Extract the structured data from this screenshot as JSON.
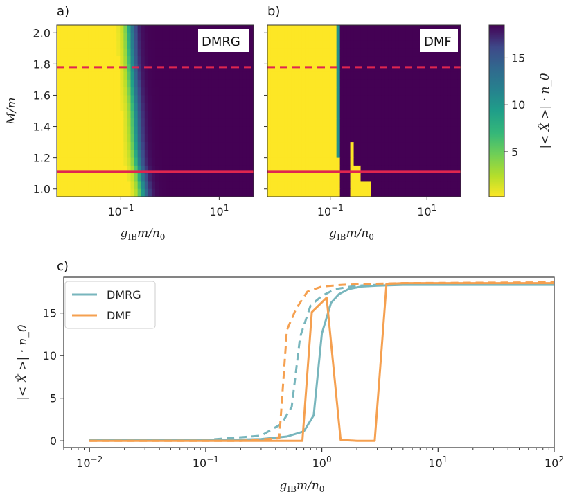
{
  "chart_data": [
    {
      "panel": "a)",
      "type": "heatmap",
      "tag": "DMRG",
      "xlabel": "g_IB m/n_0",
      "ylabel": "M/m",
      "xscale": "log",
      "xlim": [
        0.005,
        50
      ],
      "ylim": [
        0.95,
        2.05
      ],
      "xticks": [
        {
          "value": 0.1,
          "base": "10",
          "exp": "−1"
        },
        {
          "value": 10,
          "base": "10",
          "exp": "1"
        }
      ],
      "yticks": [
        "1.0",
        "1.2",
        "1.4",
        "1.6",
        "1.8",
        "2.0"
      ],
      "colormap": "viridis_r",
      "transition_boundary": [
        {
          "y": 0.95,
          "x": 0.28
        },
        {
          "y": 1.05,
          "x": 0.26
        },
        {
          "y": 1.15,
          "x": 0.22
        },
        {
          "y": 1.3,
          "x": 0.2
        },
        {
          "y": 1.5,
          "x": 0.19
        },
        {
          "y": 1.7,
          "x": 0.17
        },
        {
          "y": 1.85,
          "x": 0.16
        },
        {
          "y": 2.05,
          "x": 0.15
        }
      ],
      "reference_lines": [
        {
          "y": 1.78,
          "style": "dashed",
          "color": "#e0264f"
        },
        {
          "y": 1.11,
          "style": "solid",
          "color": "#e0264f"
        }
      ]
    },
    {
      "panel": "b)",
      "type": "heatmap",
      "tag": "DMF",
      "xlabel": "g_IB m/n_0",
      "xscale": "log",
      "xlim": [
        0.005,
        50
      ],
      "ylim": [
        0.95,
        2.05
      ],
      "xticks": [
        {
          "value": 0.1,
          "base": "10",
          "exp": "−1"
        },
        {
          "value": 10,
          "base": "10",
          "exp": "1"
        }
      ],
      "colormap": "viridis_r",
      "high_region_start_x": 0.15,
      "low_islands": [
        {
          "x0": 0.25,
          "x1": 0.32,
          "y0": 0.95,
          "y1": 1.28
        },
        {
          "x0": 0.32,
          "x1": 0.42,
          "y0": 0.95,
          "y1": 1.16
        },
        {
          "x0": 0.42,
          "x1": 0.65,
          "y0": 0.95,
          "y1": 1.05
        }
      ],
      "reference_lines": [
        {
          "y": 1.78,
          "style": "dashed",
          "color": "#e0264f"
        },
        {
          "y": 1.11,
          "style": "solid",
          "color": "#e0264f"
        }
      ]
    },
    {
      "type": "colorbar",
      "label": "|< X̂ >| · n_0",
      "ylim": [
        0.2,
        18.5
      ],
      "ticks": [
        "5",
        "10",
        "15"
      ],
      "colormap": "viridis_r"
    },
    {
      "panel": "c)",
      "type": "line",
      "xscale": "log",
      "xlim": [
        0.006,
        100
      ],
      "ylim": [
        -0.8,
        19.2
      ],
      "xlabel": "g_IB m/n_0",
      "ylabel": "|< X̂ >| · n_0",
      "xticks": [
        {
          "value": 0.01,
          "base": "10",
          "exp": "−2"
        },
        {
          "value": 0.1,
          "base": "10",
          "exp": "−1"
        },
        {
          "value": 1,
          "base": "10",
          "exp": "0"
        },
        {
          "value": 10,
          "base": "10",
          "exp": "1"
        },
        {
          "value": 100,
          "base": "10",
          "exp": "2"
        }
      ],
      "yticks": [
        "0",
        "5",
        "10",
        "15"
      ],
      "legend": {
        "position": "upper-left",
        "entries": [
          "DMRG",
          "DMF"
        ]
      },
      "series": [
        {
          "name": "DMRG",
          "style": "solid",
          "color": "#78b6bd",
          "x": [
            0.01,
            0.1,
            0.3,
            0.5,
            0.7,
            0.85,
            1.0,
            1.2,
            1.4,
            1.7,
            2.2,
            3,
            5,
            10,
            30,
            100
          ],
          "y": [
            0.05,
            0.05,
            0.2,
            0.5,
            1.1,
            3.0,
            12.6,
            16.2,
            17.2,
            17.8,
            18.1,
            18.2,
            18.3,
            18.3,
            18.3,
            18.3
          ]
        },
        {
          "name": "DMRG",
          "style": "dashed",
          "color": "#78b6bd",
          "x": [
            0.01,
            0.1,
            0.3,
            0.45,
            0.55,
            0.65,
            0.8,
            1.0,
            1.3,
            2,
            3,
            10,
            100
          ],
          "y": [
            0.05,
            0.1,
            0.6,
            2.0,
            4.0,
            12.2,
            15.9,
            17.0,
            17.8,
            18.2,
            18.3,
            18.4,
            18.4
          ]
        },
        {
          "name": "DMF",
          "style": "solid",
          "color": "#f5a050",
          "x": [
            0.01,
            0.2,
            0.5,
            0.68,
            0.82,
            1.1,
            1.45,
            2.0,
            2.85,
            3.6,
            5,
            10,
            100
          ],
          "y": [
            0.0,
            0.0,
            0.0,
            0.0,
            15.1,
            16.8,
            0.1,
            0.0,
            0.0,
            18.4,
            18.5,
            18.5,
            18.5
          ]
        },
        {
          "name": "DMF",
          "style": "dashed",
          "color": "#f5a050",
          "x": [
            0.01,
            0.2,
            0.43,
            0.5,
            0.6,
            0.75,
            1.0,
            1.5,
            2.5,
            5,
            100
          ],
          "y": [
            0.0,
            0.0,
            0.3,
            13.0,
            15.5,
            17.5,
            18.1,
            18.3,
            18.4,
            18.5,
            18.6
          ]
        }
      ]
    }
  ]
}
